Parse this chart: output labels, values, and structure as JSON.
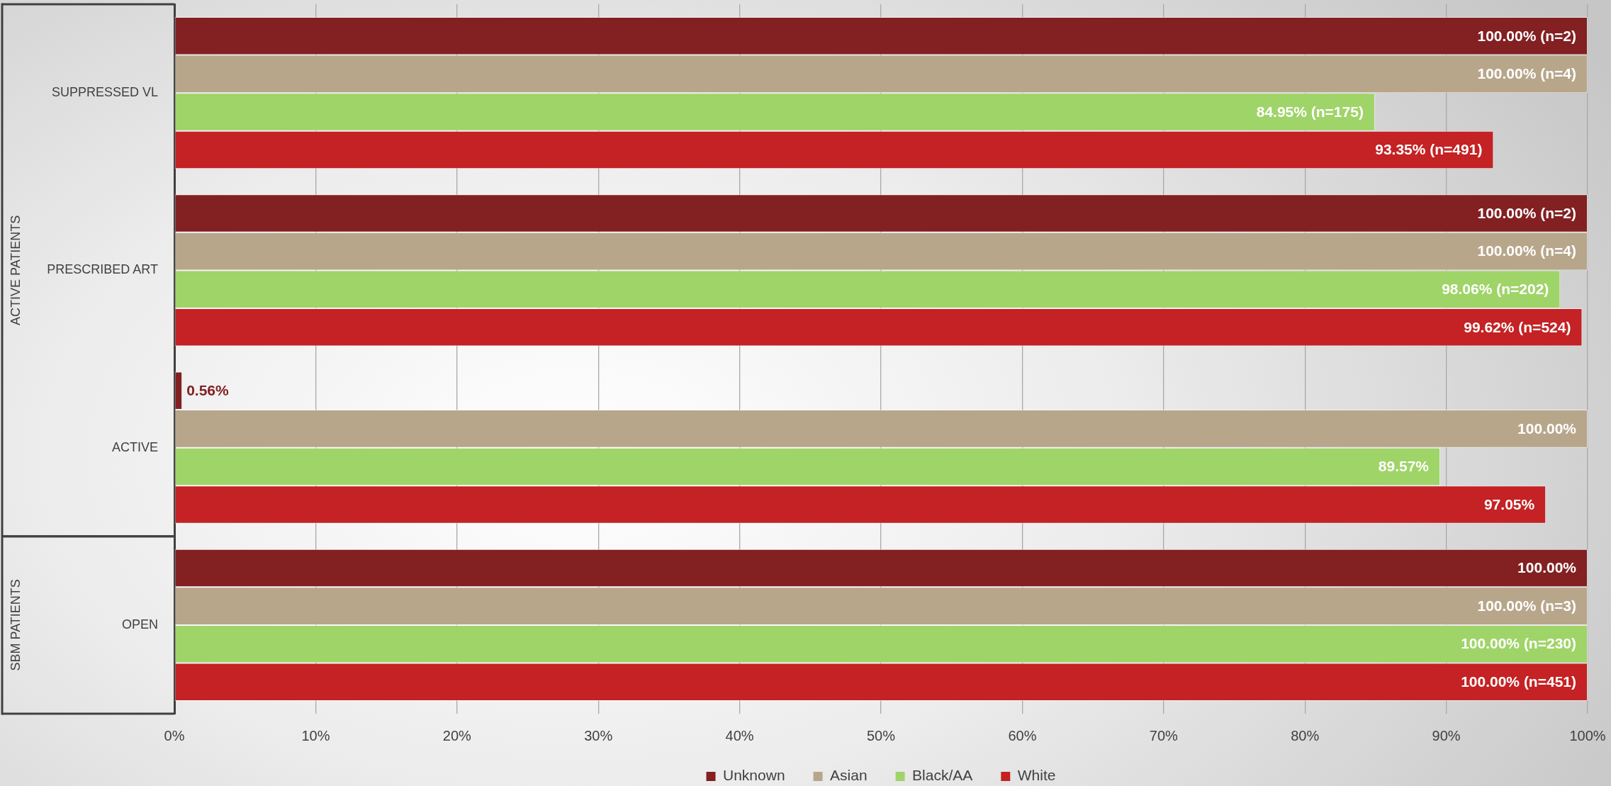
{
  "chart_data": {
    "type": "bar",
    "orientation": "horizontal",
    "categories": [
      "SUPPRESSED VL",
      "PRESCRIBED ART",
      "ACTIVE",
      "OPEN"
    ],
    "series": [
      {
        "name": "Unknown",
        "color": "#832022",
        "values": [
          100,
          100,
          0.56,
          100
        ],
        "value_labels": [
          "100.00% (n=2)",
          "100.00% (n=2)",
          "0.56%",
          "100.00%"
        ]
      },
      {
        "name": "Asian",
        "color": "#b8a68b",
        "values": [
          100,
          100,
          100,
          100
        ],
        "value_labels": [
          "100.00% (n=4)",
          "100.00% (n=4)",
          "100.00%",
          "100.00% (n=3)"
        ]
      },
      {
        "name": "Black/AA",
        "color": "#9fd468",
        "values": [
          84.95,
          98.06,
          89.57,
          100
        ],
        "value_labels": [
          "84.95% (n=175)",
          "98.06% (n=202)",
          "89.57%",
          "100.00% (n=230)"
        ]
      },
      {
        "name": "White",
        "color": "#c42224",
        "values": [
          93.35,
          99.62,
          97.05,
          100
        ],
        "value_labels": [
          "93.35% (n=491)",
          "99.62% (n=524)",
          "97.05%",
          "100.00% (n=451)"
        ]
      }
    ],
    "xlim": [
      0,
      100
    ],
    "xticks": [
      {
        "value": 0,
        "label": "0%"
      },
      {
        "value": 10,
        "label": "10%"
      },
      {
        "value": 20,
        "label": "20%"
      },
      {
        "value": 30,
        "label": "30%"
      },
      {
        "value": 40,
        "label": "40%"
      },
      {
        "value": 50,
        "label": "50%"
      },
      {
        "value": 60,
        "label": "60%"
      },
      {
        "value": 70,
        "label": "70%"
      },
      {
        "value": 80,
        "label": "80%"
      },
      {
        "value": 90,
        "label": "90%"
      },
      {
        "value": 100,
        "label": "100%"
      }
    ],
    "grid": "x",
    "legend": "bottom",
    "annotations": [
      "ACTIVE PATIENTS",
      "SBM PATIENTS"
    ]
  }
}
